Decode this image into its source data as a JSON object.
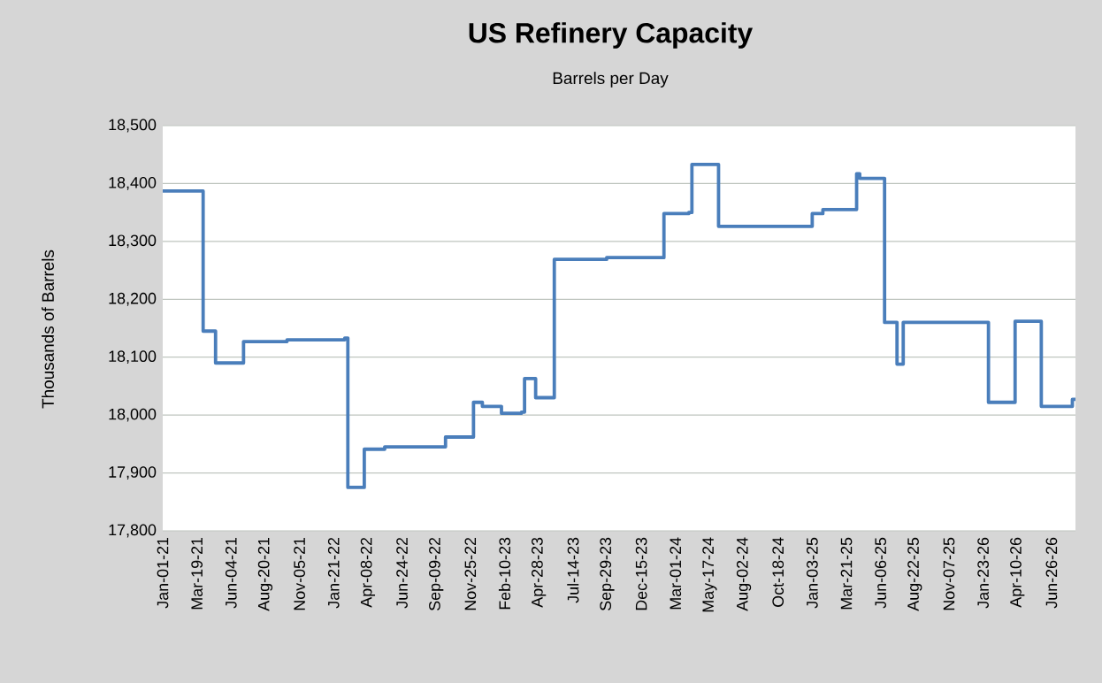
{
  "chart_data": {
    "type": "step",
    "title": "US Refinery Capacity",
    "subtitle": "Barrels per Day",
    "ylabel": "Thousands of Barrels",
    "x": [
      "2021-01-01",
      "2021-03-26",
      "2021-04-02",
      "2021-04-23",
      "2021-04-30",
      "2021-06-25",
      "2021-07-02",
      "2021-10-08",
      "2022-02-15",
      "2022-02-22",
      "2022-03-24",
      "2022-03-31",
      "2022-05-16",
      "2022-09-23",
      "2022-09-30",
      "2022-11-25",
      "2022-12-02",
      "2022-12-22",
      "2023-01-27",
      "2023-02-03",
      "2023-03-20",
      "2023-03-27",
      "2023-04-14",
      "2023-04-21",
      "2023-05-26",
      "2023-06-02",
      "2023-09-28",
      "2024-01-28",
      "2024-02-04",
      "2024-03-31",
      "2024-04-07",
      "2024-05-30",
      "2024-06-06",
      "2024-12-27",
      "2025-01-03",
      "2025-01-20",
      "2025-01-27",
      "2025-04-06",
      "2025-04-13",
      "2025-04-20",
      "2025-06-08",
      "2025-06-15",
      "2025-07-06",
      "2025-07-13",
      "2025-07-20",
      "2025-07-27",
      "2026-01-28",
      "2026-02-04",
      "2026-03-29",
      "2026-04-05",
      "2026-05-27",
      "2026-06-03",
      "2026-08-05",
      "2026-08-12",
      "2026-08-19"
    ],
    "series": [
      {
        "color": "#4a7ebb",
        "values": [
          18387,
          18387,
          18145,
          18145,
          18090,
          18090,
          18127,
          18130,
          18133,
          17875,
          17875,
          17941,
          17945,
          17945,
          17962,
          17962,
          18022,
          18015,
          18015,
          18003,
          18005,
          18063,
          18063,
          18030,
          18030,
          18269,
          18272,
          18272,
          18348,
          18350,
          18433,
          18433,
          18326,
          18326,
          18348,
          18348,
          18355,
          18355,
          18417,
          18409,
          18409,
          18160,
          18160,
          18088,
          18088,
          18160,
          18160,
          18022,
          18022,
          18162,
          18162,
          18015,
          18015,
          18027,
          18027
        ]
      }
    ],
    "xlim": [
      "2021-01-01",
      "2026-08-19"
    ],
    "xticks": [
      {
        "value": "2021-01-01",
        "label": "Jan-01-21"
      },
      {
        "value": "2021-03-19",
        "label": "Mar-19-21"
      },
      {
        "value": "2021-06-04",
        "label": "Jun-04-21"
      },
      {
        "value": "2021-08-20",
        "label": "Aug-20-21"
      },
      {
        "value": "2021-11-05",
        "label": "Nov-05-21"
      },
      {
        "value": "2022-01-21",
        "label": "Jan-21-22"
      },
      {
        "value": "2022-04-08",
        "label": "Apr-08-22"
      },
      {
        "value": "2022-06-24",
        "label": "Jun-24-22"
      },
      {
        "value": "2022-09-09",
        "label": "Sep-09-22"
      },
      {
        "value": "2022-11-25",
        "label": "Nov-25-22"
      },
      {
        "value": "2023-02-10",
        "label": "Feb-10-23"
      },
      {
        "value": "2023-04-28",
        "label": "Apr-28-23"
      },
      {
        "value": "2023-07-14",
        "label": "Jul-14-23"
      },
      {
        "value": "2023-09-29",
        "label": "Sep-29-23"
      },
      {
        "value": "2023-12-15",
        "label": "Dec-15-23"
      },
      {
        "value": "2024-03-01",
        "label": "Mar-01-24"
      },
      {
        "value": "2024-05-17",
        "label": "May-17-24"
      },
      {
        "value": "2024-08-02",
        "label": "Aug-02-24"
      },
      {
        "value": "2024-10-18",
        "label": "Oct-18-24"
      },
      {
        "value": "2025-01-03",
        "label": "Jan-03-25"
      },
      {
        "value": "2025-03-21",
        "label": "Mar-21-25"
      },
      {
        "value": "2025-06-06",
        "label": "Jun-06-25"
      },
      {
        "value": "2025-08-22",
        "label": "Aug-22-25"
      },
      {
        "value": "2025-11-07",
        "label": "Nov-07-25"
      },
      {
        "value": "2026-01-23",
        "label": "Jan-23-26"
      },
      {
        "value": "2026-04-10",
        "label": "Apr-10-26"
      },
      {
        "value": "2026-06-26",
        "label": "Jun-26-26"
      }
    ],
    "ylim": [
      17800,
      18500
    ],
    "yticks": [
      {
        "value": 17800,
        "label": "17,800"
      },
      {
        "value": 17900,
        "label": "17,900"
      },
      {
        "value": 18000,
        "label": "18,000"
      },
      {
        "value": 18100,
        "label": "18,100"
      },
      {
        "value": 18200,
        "label": "18,200"
      },
      {
        "value": 18300,
        "label": "18,300"
      },
      {
        "value": 18400,
        "label": "18,400"
      },
      {
        "value": 18500,
        "label": "18,500"
      }
    ],
    "grid": "y"
  }
}
